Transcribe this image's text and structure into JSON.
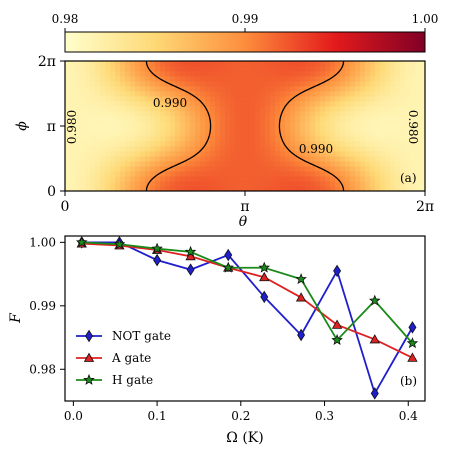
{
  "chart_data": [
    {
      "type": "heatmap",
      "panel_label": "(a)",
      "xlabel": "θ",
      "ylabel": "ϕ",
      "xlim": [
        0,
        6.2832
      ],
      "ylim": [
        0,
        6.2832
      ],
      "xticks": [
        "0",
        "π",
        "2π"
      ],
      "yticks": [
        "0",
        "π",
        "2π"
      ],
      "colorbar": {
        "range": [
          0.98,
          1.0
        ],
        "ticks": [
          "0.98",
          "0.99",
          "1.00"
        ],
        "colormap": "YlOrRd"
      },
      "contours": [
        {
          "level": 0.98,
          "label": "0.980"
        },
        {
          "level": 0.99,
          "label": "0.990"
        }
      ],
      "grid": false
    },
    {
      "type": "line",
      "panel_label": "(b)",
      "xlabel": "Ω (K)",
      "ylabel": "F",
      "xlim": [
        -0.01,
        0.42
      ],
      "ylim": [
        0.975,
        1.001
      ],
      "xticks": [
        "0.0",
        "0.1",
        "0.2",
        "0.3",
        "0.4"
      ],
      "yticks": [
        "0.98",
        "0.99",
        "1.00"
      ],
      "legend_position": "bottom-left",
      "series": [
        {
          "name": "NOT gate",
          "color": "#1f1fcc",
          "marker": "diamond",
          "x": [
            0.01,
            0.055,
            0.1,
            0.14,
            0.185,
            0.228,
            0.272,
            0.315,
            0.36,
            0.405
          ],
          "y": [
            1.0,
            1.0,
            0.9972,
            0.9957,
            0.998,
            0.9914,
            0.9854,
            0.9955,
            0.9762,
            0.9866
          ]
        },
        {
          "name": "A gate",
          "color": "#dd2222",
          "marker": "triangle",
          "x": [
            0.01,
            0.055,
            0.1,
            0.14,
            0.185,
            0.228,
            0.272,
            0.315,
            0.36,
            0.405
          ],
          "y": [
            0.9998,
            0.9995,
            0.9988,
            0.9978,
            0.996,
            0.9945,
            0.9913,
            0.987,
            0.9847,
            0.9818
          ]
        },
        {
          "name": "H gate",
          "color": "#1a8a1a",
          "marker": "star",
          "x": [
            0.01,
            0.055,
            0.1,
            0.14,
            0.185,
            0.228,
            0.272,
            0.315,
            0.36,
            0.405
          ],
          "y": [
            1.0,
            0.9997,
            0.999,
            0.9985,
            0.996,
            0.996,
            0.9942,
            0.9846,
            0.9908,
            0.9841
          ]
        }
      ]
    }
  ]
}
